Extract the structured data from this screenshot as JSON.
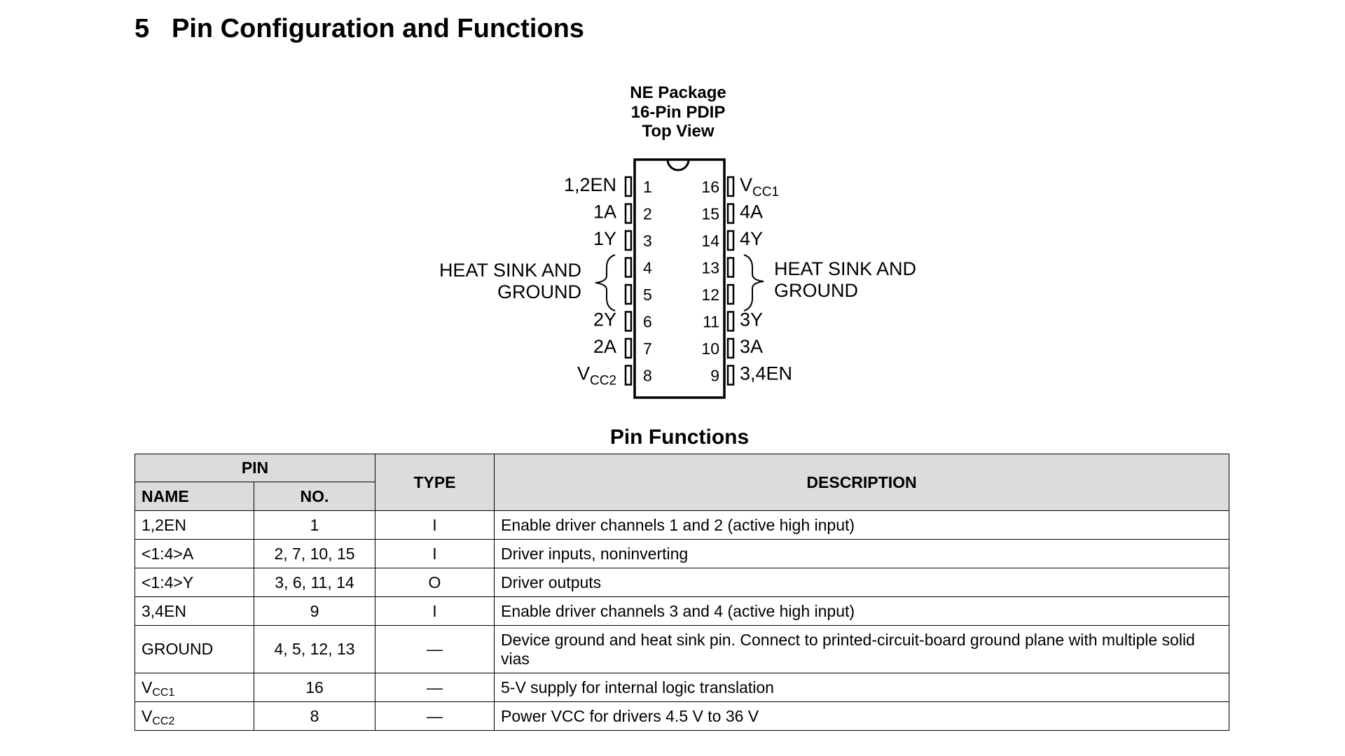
{
  "heading": {
    "number": "5",
    "title": "Pin Configuration and Functions"
  },
  "package": {
    "line1": "NE Package",
    "line2": "16-Pin PDIP",
    "line3": "Top View"
  },
  "pins_left": [
    {
      "no": "1",
      "label": "1,2EN"
    },
    {
      "no": "2",
      "label": "1A"
    },
    {
      "no": "3",
      "label": "1Y"
    },
    {
      "no": "4",
      "label": ""
    },
    {
      "no": "5",
      "label": ""
    },
    {
      "no": "6",
      "label": "2Y"
    },
    {
      "no": "7",
      "label": "2A"
    },
    {
      "no": "8",
      "label": "V",
      "sub": "CC2"
    }
  ],
  "pins_right": [
    {
      "no": "16",
      "label": "V",
      "sub": "CC1"
    },
    {
      "no": "15",
      "label": "4A"
    },
    {
      "no": "14",
      "label": "4Y"
    },
    {
      "no": "13",
      "label": ""
    },
    {
      "no": "12",
      "label": ""
    },
    {
      "no": "11",
      "label": "3Y"
    },
    {
      "no": "10",
      "label": "3A"
    },
    {
      "no": "9",
      "label": "3,4EN"
    }
  ],
  "heat_sink_left": {
    "line1": "HEAT SINK AND",
    "line2": "GROUND"
  },
  "heat_sink_right": {
    "line1": "HEAT SINK AND",
    "line2": "GROUND"
  },
  "table": {
    "title": "Pin Functions",
    "headers": {
      "pin": "PIN",
      "name": "NAME",
      "no": "NO.",
      "type": "TYPE",
      "description": "DESCRIPTION"
    },
    "rows": [
      {
        "name": "1,2EN",
        "no": "1",
        "type": "I",
        "description": "Enable driver channels 1 and 2 (active high input)"
      },
      {
        "name": "<1:4>A",
        "no": "2, 7, 10, 15",
        "type": "I",
        "description": "Driver inputs, noninverting"
      },
      {
        "name": "<1:4>Y",
        "no": "3, 6, 11, 14",
        "type": "O",
        "description": "Driver outputs"
      },
      {
        "name": "3,4EN",
        "no": "9",
        "type": "I",
        "description": "Enable driver channels 3 and 4 (active high input)"
      },
      {
        "name": "GROUND",
        "no": "4, 5, 12, 13",
        "type": "—",
        "description": "Device ground and heat sink pin. Connect to printed-circuit-board ground plane with multiple solid vias"
      },
      {
        "name": "V",
        "name_sub": "CC1",
        "no": "16",
        "type": "—",
        "description": "5-V supply for internal logic translation"
      },
      {
        "name": "V",
        "name_sub": "CC2",
        "no": "8",
        "type": "—",
        "description": "Power VCC for drivers 4.5 V to 36 V"
      }
    ]
  }
}
